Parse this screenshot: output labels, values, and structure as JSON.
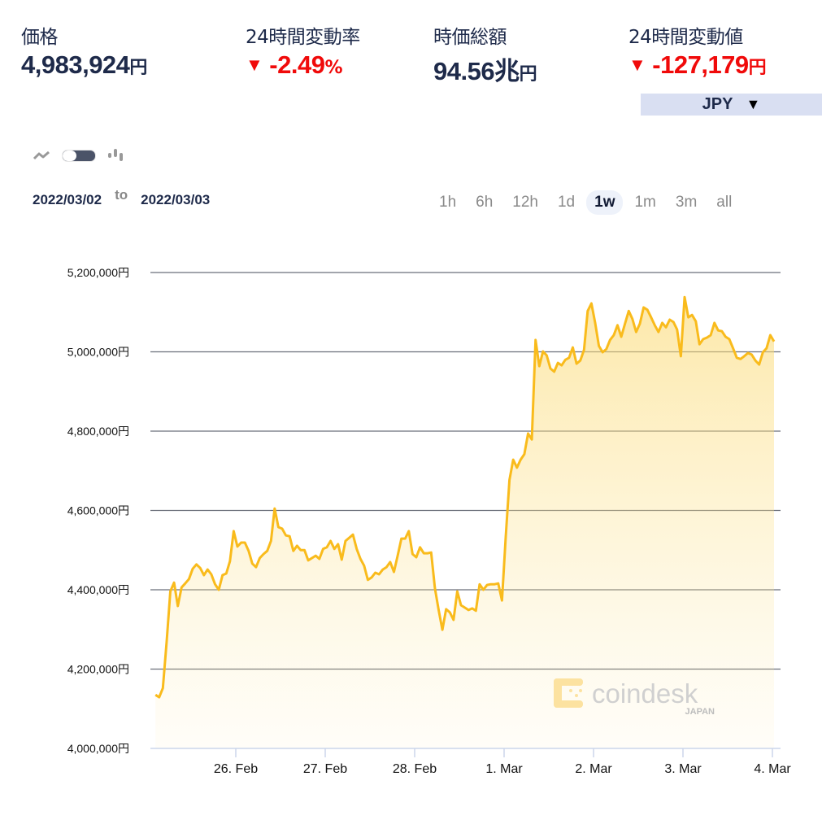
{
  "stats": [
    {
      "label": "価格",
      "value": "4,983,924",
      "unit": "円",
      "negative": false
    },
    {
      "label": "24時間変動率",
      "value": "-2.49",
      "unit": "%",
      "negative": true,
      "arrow": "▼"
    },
    {
      "label": "時価総額",
      "value": "94.56兆",
      "unit": "円",
      "negative": false
    },
    {
      "label": "24時間変動値",
      "value": "-127,179",
      "unit": "円",
      "negative": true,
      "arrow": "▼"
    }
  ],
  "currency": {
    "selected": "JPY",
    "caret": "▼"
  },
  "chart_toggle": {
    "left_icon": "line-chart-icon",
    "right_icon": "candlestick-icon",
    "mode": "line"
  },
  "date_range": {
    "from": "2022/03/02",
    "to_label": "to",
    "to": "2022/03/03"
  },
  "ranges": [
    {
      "label": "1h",
      "active": false
    },
    {
      "label": "6h",
      "active": false
    },
    {
      "label": "12h",
      "active": false
    },
    {
      "label": "1d",
      "active": false
    },
    {
      "label": "1w",
      "active": true
    },
    {
      "label": "1m",
      "active": false
    },
    {
      "label": "3m",
      "active": false
    },
    {
      "label": "all",
      "active": false
    }
  ],
  "watermark": {
    "brand": "coindesk",
    "sub": "JAPAN"
  },
  "colors": {
    "line": "#f9bb1c",
    "fill": "#fbe7a8",
    "text": "#1e2a4a",
    "negative": "#f00a0a",
    "currency_bg": "#d9dff2"
  },
  "chart_data": {
    "type": "area",
    "title": "",
    "xlabel": "",
    "ylabel": "",
    "ylim": [
      4000000,
      5200000
    ],
    "yticks": [
      4000000,
      4200000,
      4400000,
      4600000,
      4800000,
      5000000,
      5200000
    ],
    "ytick_labels": [
      "4,000,000円",
      "4,200,000円",
      "4,400,000円",
      "4,600,000円",
      "4,800,000円",
      "5,000,000円",
      "5,200,000円"
    ],
    "xticks": [
      "2022-02-26 00:00",
      "2022-02-27 00:00",
      "2022-02-28 00:00",
      "2022-03-01 00:00",
      "2022-03-02 00:00",
      "2022-03-03 00:00",
      "2022-03-04 00:00"
    ],
    "xtick_labels": [
      "26. Feb",
      "27. Feb",
      "28. Feb",
      "1. Mar",
      "2. Mar",
      "3. Mar",
      "4. Mar"
    ],
    "grid": true,
    "legend": "none",
    "points": [
      [
        "2022-02-25 02:00",
        4135000
      ],
      [
        "2022-02-25 03:00",
        4129000
      ],
      [
        "2022-02-25 04:00",
        4152000
      ],
      [
        "2022-02-25 05:00",
        4267000
      ],
      [
        "2022-02-25 06:00",
        4396000
      ],
      [
        "2022-02-25 07:00",
        4418000
      ],
      [
        "2022-02-25 08:00",
        4359000
      ],
      [
        "2022-02-25 09:00",
        4406000
      ],
      [
        "2022-02-25 10:00",
        4416000
      ],
      [
        "2022-02-25 11:00",
        4427000
      ],
      [
        "2022-02-25 12:00",
        4453000
      ],
      [
        "2022-02-25 13:00",
        4464000
      ],
      [
        "2022-02-25 14:00",
        4455000
      ],
      [
        "2022-02-25 15:00",
        4437000
      ],
      [
        "2022-02-25 16:00",
        4451000
      ],
      [
        "2022-02-25 17:00",
        4439000
      ],
      [
        "2022-02-25 18:00",
        4414000
      ],
      [
        "2022-02-25 19:00",
        4400000
      ],
      [
        "2022-02-25 20:00",
        4437000
      ],
      [
        "2022-02-25 21:00",
        4441000
      ],
      [
        "2022-02-25 22:00",
        4472000
      ],
      [
        "2022-02-25 23:00",
        4548000
      ],
      [
        "2022-02-26 00:00",
        4509000
      ],
      [
        "2022-02-26 01:00",
        4519000
      ],
      [
        "2022-02-26 02:00",
        4519000
      ],
      [
        "2022-02-26 03:00",
        4498000
      ],
      [
        "2022-02-26 04:00",
        4466000
      ],
      [
        "2022-02-26 05:00",
        4457000
      ],
      [
        "2022-02-26 06:00",
        4480000
      ],
      [
        "2022-02-26 07:00",
        4490000
      ],
      [
        "2022-02-26 08:00",
        4498000
      ],
      [
        "2022-02-26 09:00",
        4523000
      ],
      [
        "2022-02-26 10:00",
        4605000
      ],
      [
        "2022-02-26 11:00",
        4558000
      ],
      [
        "2022-02-26 12:00",
        4554000
      ],
      [
        "2022-02-26 13:00",
        4537000
      ],
      [
        "2022-02-26 14:00",
        4535000
      ],
      [
        "2022-02-26 15:00",
        4498000
      ],
      [
        "2022-02-26 16:00",
        4511000
      ],
      [
        "2022-02-26 17:00",
        4500000
      ],
      [
        "2022-02-26 18:00",
        4500000
      ],
      [
        "2022-02-26 19:00",
        4474000
      ],
      [
        "2022-02-26 20:00",
        4480000
      ],
      [
        "2022-02-26 21:00",
        4486000
      ],
      [
        "2022-02-26 22:00",
        4478000
      ],
      [
        "2022-02-26 23:00",
        4503000
      ],
      [
        "2022-02-27 00:00",
        4507000
      ],
      [
        "2022-02-27 01:00",
        4523000
      ],
      [
        "2022-02-27 02:00",
        4503000
      ],
      [
        "2022-02-27 03:00",
        4515000
      ],
      [
        "2022-02-27 04:00",
        4476000
      ],
      [
        "2022-02-27 05:00",
        4523000
      ],
      [
        "2022-02-27 06:00",
        4531000
      ],
      [
        "2022-02-27 07:00",
        4539000
      ],
      [
        "2022-02-27 08:00",
        4503000
      ],
      [
        "2022-02-27 09:00",
        4478000
      ],
      [
        "2022-02-27 10:00",
        4461000
      ],
      [
        "2022-02-27 11:00",
        4425000
      ],
      [
        "2022-02-27 12:00",
        4431000
      ],
      [
        "2022-02-27 13:00",
        4443000
      ],
      [
        "2022-02-27 14:00",
        4439000
      ],
      [
        "2022-02-27 15:00",
        4451000
      ],
      [
        "2022-02-27 16:00",
        4457000
      ],
      [
        "2022-02-27 17:00",
        4470000
      ],
      [
        "2022-02-27 18:00",
        4445000
      ],
      [
        "2022-02-27 19:00",
        4486000
      ],
      [
        "2022-02-27 20:00",
        4529000
      ],
      [
        "2022-02-27 21:00",
        4529000
      ],
      [
        "2022-02-27 22:00",
        4548000
      ],
      [
        "2022-02-27 23:00",
        4490000
      ],
      [
        "2022-02-28 00:00",
        4482000
      ],
      [
        "2022-02-28 01:00",
        4507000
      ],
      [
        "2022-02-28 02:00",
        4492000
      ],
      [
        "2022-02-28 03:00",
        4492000
      ],
      [
        "2022-02-28 04:00",
        4494000
      ],
      [
        "2022-02-28 05:00",
        4404000
      ],
      [
        "2022-02-28 06:00",
        4349000
      ],
      [
        "2022-02-28 07:00",
        4299000
      ],
      [
        "2022-02-28 08:00",
        4351000
      ],
      [
        "2022-02-28 09:00",
        4343000
      ],
      [
        "2022-02-28 10:00",
        4324000
      ],
      [
        "2022-02-28 11:00",
        4396000
      ],
      [
        "2022-02-28 12:00",
        4361000
      ],
      [
        "2022-02-28 13:00",
        4355000
      ],
      [
        "2022-02-28 14:00",
        4349000
      ],
      [
        "2022-02-28 15:00",
        4353000
      ],
      [
        "2022-02-28 16:00",
        4347000
      ],
      [
        "2022-02-28 17:00",
        4414000
      ],
      [
        "2022-02-28 18:00",
        4400000
      ],
      [
        "2022-02-28 19:00",
        4412000
      ],
      [
        "2022-02-28 20:00",
        4414000
      ],
      [
        "2022-02-28 21:00",
        4414000
      ],
      [
        "2022-02-28 22:00",
        4416000
      ],
      [
        "2022-02-28 23:00",
        4373000
      ],
      [
        "2022-03-01 00:00",
        4533000
      ],
      [
        "2022-03-01 01:00",
        4677000
      ],
      [
        "2022-03-01 02:00",
        4728000
      ],
      [
        "2022-03-01 03:00",
        4708000
      ],
      [
        "2022-03-01 04:00",
        4728000
      ],
      [
        "2022-03-01 05:00",
        4742000
      ],
      [
        "2022-03-01 06:00",
        4794000
      ],
      [
        "2022-03-01 07:00",
        4779000
      ],
      [
        "2022-03-01 08:00",
        5030000
      ],
      [
        "2022-03-01 09:00",
        4964000
      ],
      [
        "2022-03-01 10:00",
        5001000
      ],
      [
        "2022-03-01 11:00",
        4991000
      ],
      [
        "2022-03-01 12:00",
        4958000
      ],
      [
        "2022-03-01 13:00",
        4950000
      ],
      [
        "2022-03-01 14:00",
        4972000
      ],
      [
        "2022-03-01 15:00",
        4966000
      ],
      [
        "2022-03-01 16:00",
        4980000
      ],
      [
        "2022-03-01 17:00",
        4985000
      ],
      [
        "2022-03-01 18:00",
        5011000
      ],
      [
        "2022-03-01 19:00",
        4970000
      ],
      [
        "2022-03-01 20:00",
        4978000
      ],
      [
        "2022-03-01 21:00",
        5005000
      ],
      [
        "2022-03-01 22:00",
        5103000
      ],
      [
        "2022-03-01 23:00",
        5122000
      ],
      [
        "2022-03-02 00:00",
        5073000
      ],
      [
        "2022-03-02 01:00",
        5015000
      ],
      [
        "2022-03-02 02:00",
        4999000
      ],
      [
        "2022-03-02 03:00",
        5007000
      ],
      [
        "2022-03-02 04:00",
        5030000
      ],
      [
        "2022-03-02 05:00",
        5042000
      ],
      [
        "2022-03-02 06:00",
        5067000
      ],
      [
        "2022-03-02 07:00",
        5038000
      ],
      [
        "2022-03-02 08:00",
        5071000
      ],
      [
        "2022-03-02 09:00",
        5103000
      ],
      [
        "2022-03-02 10:00",
        5083000
      ],
      [
        "2022-03-02 11:00",
        5050000
      ],
      [
        "2022-03-02 12:00",
        5071000
      ],
      [
        "2022-03-02 13:00",
        5112000
      ],
      [
        "2022-03-02 14:00",
        5106000
      ],
      [
        "2022-03-02 15:00",
        5087000
      ],
      [
        "2022-03-02 16:00",
        5067000
      ],
      [
        "2022-03-02 17:00",
        5050000
      ],
      [
        "2022-03-02 18:00",
        5073000
      ],
      [
        "2022-03-02 19:00",
        5062000
      ],
      [
        "2022-03-02 20:00",
        5081000
      ],
      [
        "2022-03-02 21:00",
        5075000
      ],
      [
        "2022-03-02 22:00",
        5056000
      ],
      [
        "2022-03-02 23:00",
        4989000
      ],
      [
        "2022-03-03 00:00",
        5138000
      ],
      [
        "2022-03-03 01:00",
        5087000
      ],
      [
        "2022-03-03 02:00",
        5093000
      ],
      [
        "2022-03-03 03:00",
        5077000
      ],
      [
        "2022-03-03 04:00",
        5019000
      ],
      [
        "2022-03-03 05:00",
        5032000
      ],
      [
        "2022-03-03 06:00",
        5036000
      ],
      [
        "2022-03-03 07:00",
        5042000
      ],
      [
        "2022-03-03 08:00",
        5073000
      ],
      [
        "2022-03-03 09:00",
        5054000
      ],
      [
        "2022-03-03 10:00",
        5052000
      ],
      [
        "2022-03-03 11:00",
        5038000
      ],
      [
        "2022-03-03 12:00",
        5032000
      ],
      [
        "2022-03-03 13:00",
        5009000
      ],
      [
        "2022-03-03 14:00",
        4985000
      ],
      [
        "2022-03-03 15:00",
        4982000
      ],
      [
        "2022-03-03 16:00",
        4989000
      ],
      [
        "2022-03-03 17:00",
        4997000
      ],
      [
        "2022-03-03 18:00",
        4993000
      ],
      [
        "2022-03-03 19:00",
        4978000
      ],
      [
        "2022-03-03 20:00",
        4968000
      ],
      [
        "2022-03-03 21:00",
        4999000
      ],
      [
        "2022-03-03 22:00",
        5009000
      ],
      [
        "2022-03-03 23:00",
        5042000
      ],
      [
        "2022-03-04 00:00",
        5026000
      ]
    ]
  }
}
